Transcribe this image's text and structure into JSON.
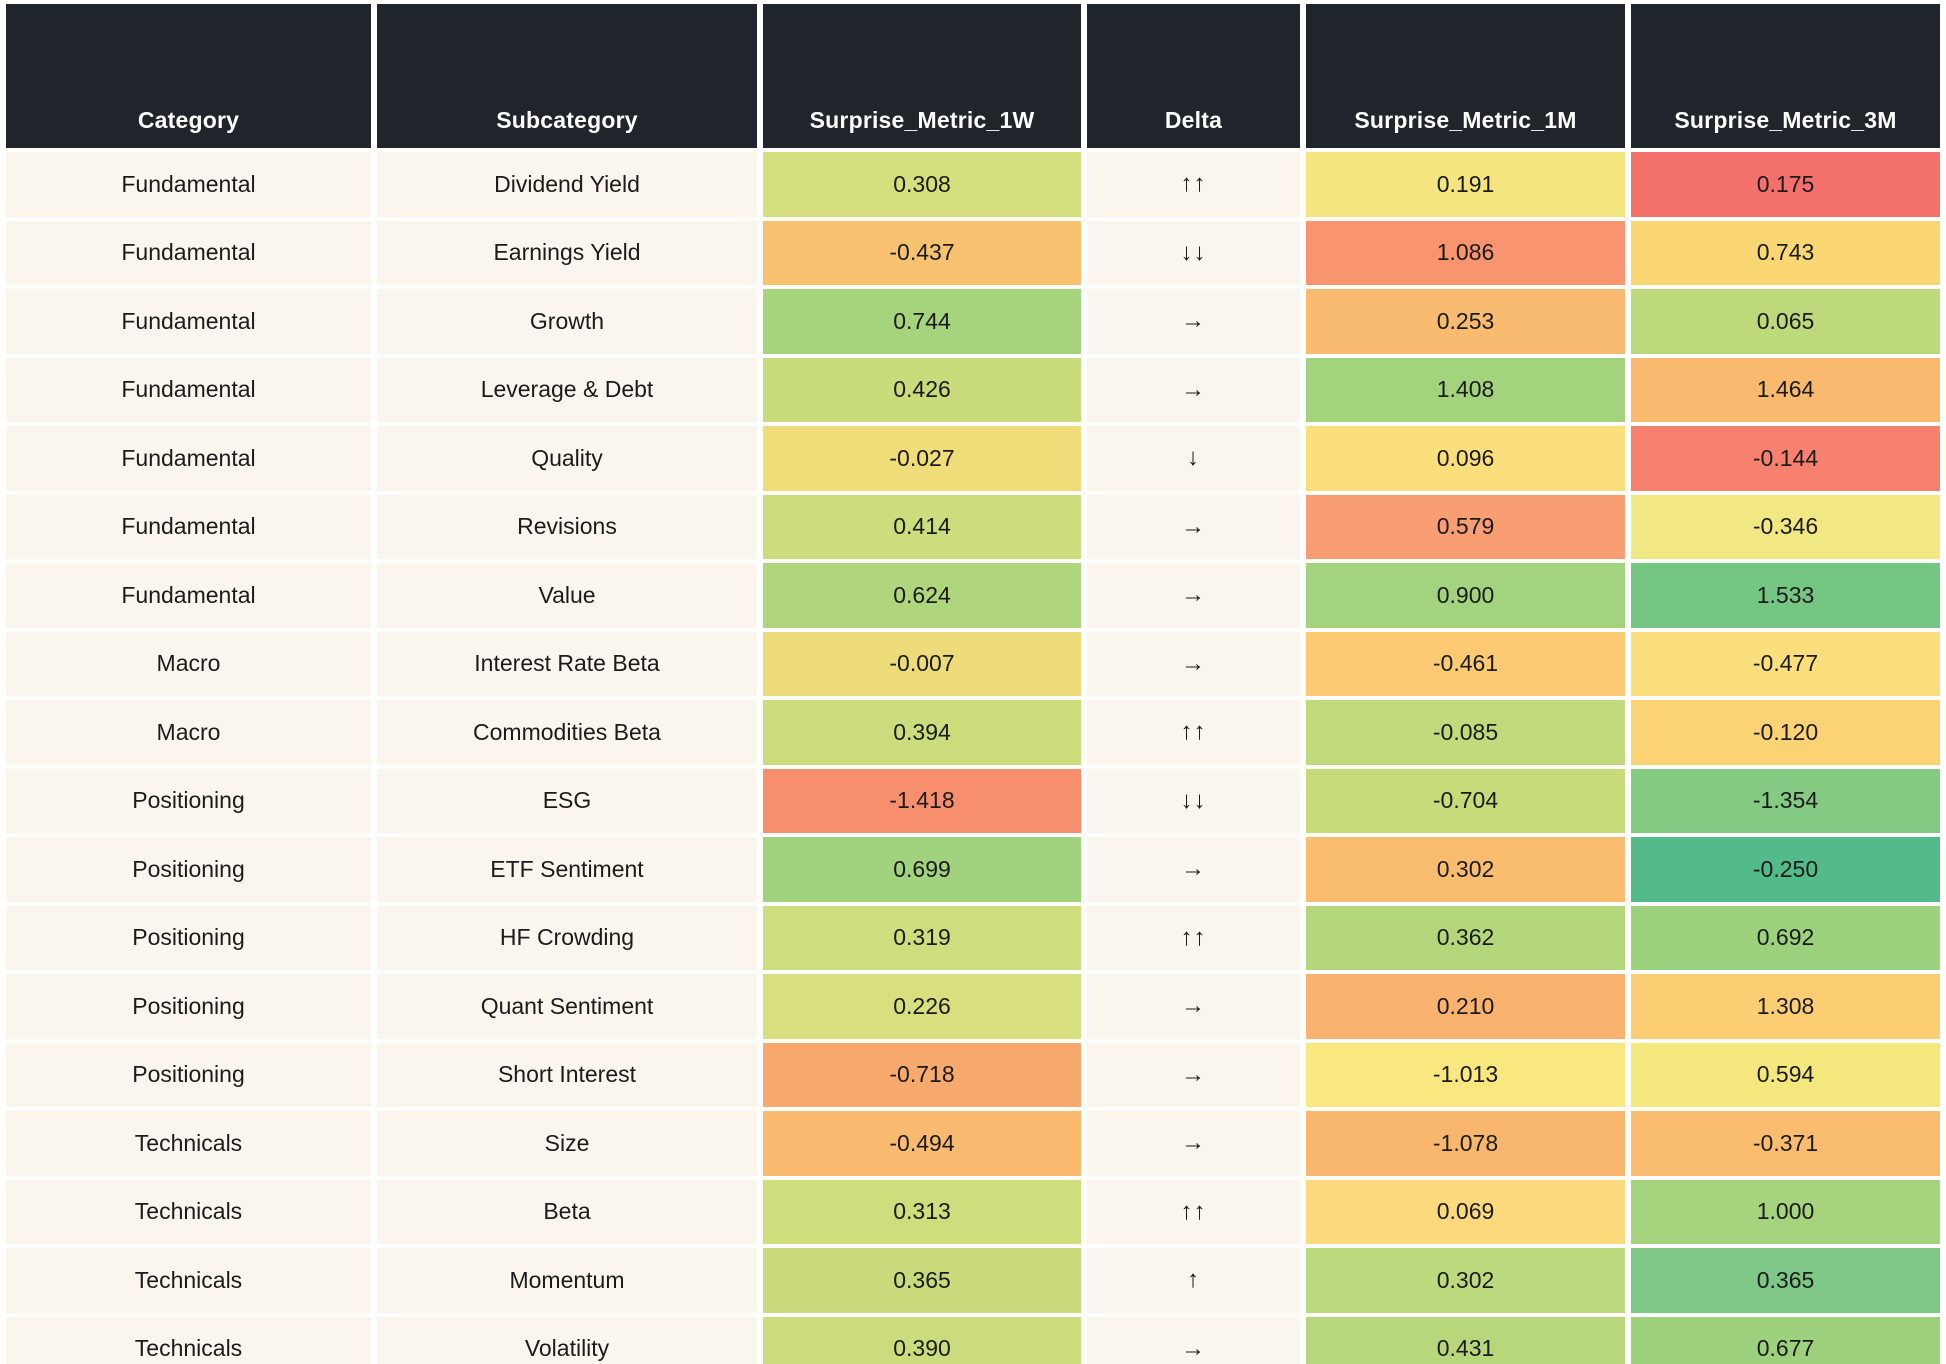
{
  "colors": {
    "header_bg": "#20252b",
    "header_text": "#ffffff",
    "base_cell_bg": "#fbf6ed",
    "gutter": "#ffffff",
    "cell_text": "#1b1b1b"
  },
  "table": {
    "columns": [
      {
        "key": "category",
        "label": "Category"
      },
      {
        "key": "subcategory",
        "label": "Subcategory"
      },
      {
        "key": "m1w",
        "label": "Surprise_Metric_1W"
      },
      {
        "key": "delta",
        "label": "Delta"
      },
      {
        "key": "m1m",
        "label": "Surprise_Metric_1M"
      },
      {
        "key": "m3m",
        "label": "Surprise_Metric_3M"
      }
    ]
  },
  "chart_data": {
    "type": "heatmap",
    "title": "",
    "columns": [
      "Category",
      "Subcategory",
      "Surprise_Metric_1W",
      "Delta",
      "Surprise_Metric_1M",
      "Surprise_Metric_3M"
    ],
    "rows": [
      {
        "category": "Fundamental",
        "subcategory": "Dividend Yield",
        "m1w": "0.308",
        "m1w_color": "#d6df7e",
        "delta": "↑↑",
        "m1m": "0.191",
        "m1m_color": "#f4e57f",
        "m3m": "0.175",
        "m3m_color": "#f4706a"
      },
      {
        "category": "Fundamental",
        "subcategory": "Earnings Yield",
        "m1w": "-0.437",
        "m1w_color": "#f8c271",
        "delta": "↓↓",
        "m1m": "1.086",
        "m1m_color": "#f8946e",
        "m3m": "0.743",
        "m3m_color": "#fbd773"
      },
      {
        "category": "Fundamental",
        "subcategory": "Growth",
        "m1w": "0.744",
        "m1w_color": "#a6d47d",
        "delta": "→",
        "m1m": "0.253",
        "m1m_color": "#f9bb6f",
        "m3m": "0.065",
        "m3m_color": "#bed97b"
      },
      {
        "category": "Fundamental",
        "subcategory": "Leverage & Debt",
        "m1w": "0.426",
        "m1w_color": "#c9dc7c",
        "delta": "→",
        "m1m": "1.408",
        "m1m_color": "#a3d37d",
        "m3m": "1.464",
        "m3m_color": "#f9ba6f"
      },
      {
        "category": "Fundamental",
        "subcategory": "Quality",
        "m1w": "-0.027",
        "m1w_color": "#f0dc78",
        "delta": "↓",
        "m1m": "0.096",
        "m1m_color": "#fcdf7d",
        "m3m": "-0.144",
        "m3m_color": "#f7806e"
      },
      {
        "category": "Fundamental",
        "subcategory": "Revisions",
        "m1w": "0.414",
        "m1w_color": "#cbdd7c",
        "delta": "→",
        "m1m": "0.579",
        "m1m_color": "#f99d72",
        "m3m": "-0.346",
        "m3m_color": "#f1e883"
      },
      {
        "category": "Fundamental",
        "subcategory": "Value",
        "m1w": "0.624",
        "m1w_color": "#afd57d",
        "delta": "→",
        "m1m": "0.900",
        "m1m_color": "#a3d37e",
        "m3m": "1.533",
        "m3m_color": "#75c583"
      },
      {
        "category": "Macro",
        "subcategory": "Interest Rate Beta",
        "m1w": "-0.007",
        "m1w_color": "#eedb79",
        "delta": "→",
        "m1m": "-0.461",
        "m1m_color": "#fbca72",
        "m3m": "-0.477",
        "m3m_color": "#fbdf7c"
      },
      {
        "category": "Macro",
        "subcategory": "Commodities Beta",
        "m1w": "0.394",
        "m1w_color": "#cbdc7c",
        "delta": "↑↑",
        "m1m": "-0.085",
        "m1m_color": "#c1da7b",
        "m3m": "-0.120",
        "m3m_color": "#fbd375"
      },
      {
        "category": "Positioning",
        "subcategory": "ESG",
        "m1w": "-1.418",
        "m1w_color": "#f78f6e",
        "delta": "↓↓",
        "m1m": "-0.704",
        "m1m_color": "#c7db7b",
        "m3m": "-1.354",
        "m3m_color": "#85ca82"
      },
      {
        "category": "Positioning",
        "subcategory": "ETF Sentiment",
        "m1w": "0.699",
        "m1w_color": "#a1d27d",
        "delta": "→",
        "m1m": "0.302",
        "m1m_color": "#fabd70",
        "m3m": "-0.250",
        "m3m_color": "#53bb8a"
      },
      {
        "category": "Positioning",
        "subcategory": "HF Crowding",
        "m1w": "0.319",
        "m1w_color": "#cedd7d",
        "delta": "↑↑",
        "m1m": "0.362",
        "m1m_color": "#b5d77c",
        "m3m": "0.692",
        "m3m_color": "#9cd17d"
      },
      {
        "category": "Positioning",
        "subcategory": "Quant Sentiment",
        "m1w": "0.226",
        "m1w_color": "#d7df7e",
        "delta": "→",
        "m1m": "0.210",
        "m1m_color": "#f9b36e",
        "m3m": "1.308",
        "m3m_color": "#fbce73"
      },
      {
        "category": "Positioning",
        "subcategory": "Short Interest",
        "m1w": "-0.718",
        "m1w_color": "#f8aa6e",
        "delta": "→",
        "m1m": "-1.013",
        "m1m_color": "#f9e780",
        "m3m": "0.594",
        "m3m_color": "#f3e77e"
      },
      {
        "category": "Technicals",
        "subcategory": "Size",
        "m1w": "-0.494",
        "m1w_color": "#fabb70",
        "delta": "→",
        "m1m": "-1.078",
        "m1m_color": "#f9b76e",
        "m3m": "-0.371",
        "m3m_color": "#fabd70"
      },
      {
        "category": "Technicals",
        "subcategory": "Beta",
        "m1w": "0.313",
        "m1w_color": "#cfdd7d",
        "delta": "↑↑",
        "m1m": "0.069",
        "m1m_color": "#fcd97c",
        "m3m": "1.000",
        "m3m_color": "#a6d37d"
      },
      {
        "category": "Technicals",
        "subcategory": "Momentum",
        "m1w": "0.365",
        "m1w_color": "#c9db7c",
        "delta": "↑",
        "m1m": "0.302",
        "m1m_color": "#bdda7e",
        "m3m": "0.365",
        "m3m_color": "#7ec786"
      },
      {
        "category": "Technicals",
        "subcategory": "Volatility",
        "m1w": "0.390",
        "m1w_color": "#cadc7c",
        "delta": "→",
        "m1m": "0.431",
        "m1m_color": "#b8d77b",
        "m3m": "0.677",
        "m3m_color": "#9dd17d"
      }
    ]
  }
}
